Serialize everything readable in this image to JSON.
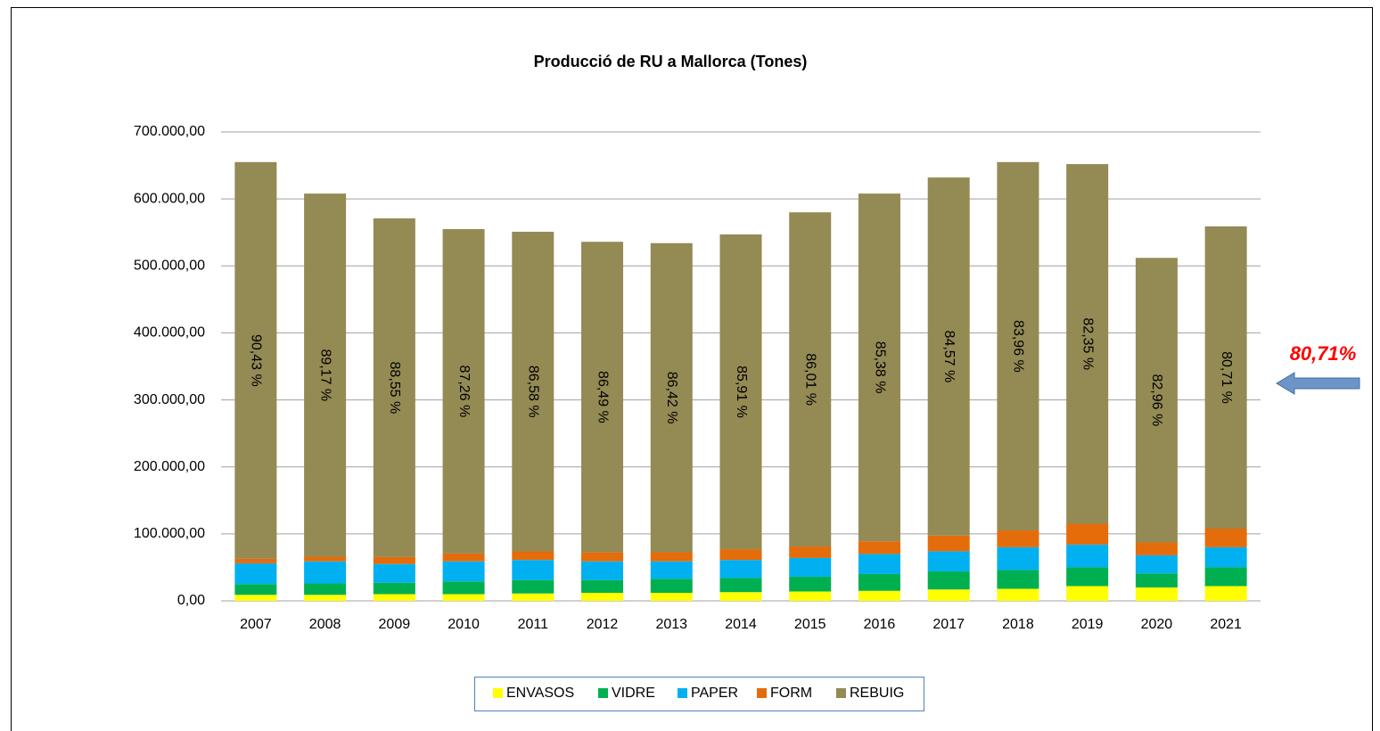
{
  "chart_data": {
    "type": "stacked_bar",
    "title": "Producció de RU a Mallorca (Tones)",
    "categories": [
      "2007",
      "2008",
      "2009",
      "2010",
      "2011",
      "2012",
      "2013",
      "2014",
      "2015",
      "2016",
      "2017",
      "2018",
      "2019",
      "2020",
      "2021"
    ],
    "series": [
      {
        "name": "ENVASOS",
        "color": "#ffff00",
        "values": [
          9000,
          9000,
          10000,
          10000,
          11000,
          12000,
          12000,
          13000,
          14000,
          15000,
          17000,
          18000,
          22000,
          20000,
          22000
        ]
      },
      {
        "name": "VIDRE",
        "color": "#00b050",
        "values": [
          16000,
          17000,
          17000,
          19000,
          20000,
          19000,
          21000,
          21000,
          22000,
          25000,
          27000,
          28000,
          28000,
          21000,
          28000
        ]
      },
      {
        "name": "PAPER",
        "color": "#00b0f0",
        "values": [
          31000,
          33000,
          28000,
          30000,
          30000,
          28000,
          26000,
          27000,
          28000,
          30000,
          30000,
          34000,
          34000,
          27000,
          30000
        ]
      },
      {
        "name": "FORM",
        "color": "#e46c0a",
        "values": [
          6700,
          6900,
          10400,
          11700,
          12900,
          13400,
          13500,
          16100,
          17100,
          18900,
          23500,
          25100,
          31100,
          19200,
          27800
        ]
      },
      {
        "name": "REBUIG",
        "color": "#948a54",
        "values": [
          592300,
          542100,
          505600,
          484300,
          477100,
          463600,
          461500,
          469900,
          498900,
          519100,
          534500,
          549900,
          536900,
          424800,
          451200
        ]
      }
    ],
    "share_labels": [
      "90,43 %",
      "89,17 %",
      "88,55 %",
      "87,26 %",
      "86,58 %",
      "86,49 %",
      "86,42 %",
      "85,91 %",
      "86,01 %",
      "85,38 %",
      "84,57 %",
      "83,96 %",
      "82,35 %",
      "82,96 %",
      "80,71 %"
    ],
    "annotation": "80,71%",
    "ylim": [
      0,
      700000
    ],
    "yticks": [
      {
        "value": 0,
        "label": "0,00"
      },
      {
        "value": 100000,
        "label": "100.000,00"
      },
      {
        "value": 200000,
        "label": "200.000,00"
      },
      {
        "value": 300000,
        "label": "300.000,00"
      },
      {
        "value": 400000,
        "label": "400.000,00"
      },
      {
        "value": 500000,
        "label": "500.000,00"
      },
      {
        "value": 600000,
        "label": "600.000,00"
      },
      {
        "value": 700000,
        "label": "700.000,00"
      }
    ],
    "grid": true,
    "legend": "bottom"
  }
}
